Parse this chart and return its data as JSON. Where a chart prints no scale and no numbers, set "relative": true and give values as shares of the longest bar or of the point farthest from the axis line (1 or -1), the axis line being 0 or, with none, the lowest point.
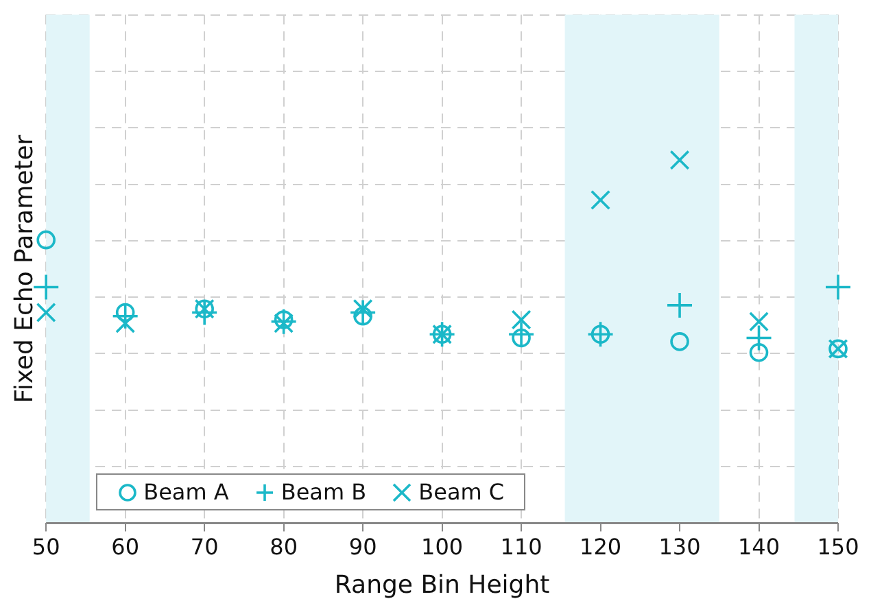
{
  "chart_data": {
    "type": "scatter",
    "relative": true,
    "xlabel": "Range Bin Height",
    "ylabel": "Fixed Echo Parameter",
    "x": [
      50,
      60,
      70,
      80,
      90,
      100,
      110,
      120,
      130,
      140,
      150
    ],
    "xlim": [
      50,
      150
    ],
    "xticks": [
      50,
      60,
      70,
      80,
      90,
      100,
      110,
      120,
      130,
      140,
      150
    ],
    "grid": true,
    "legend": "bottom",
    "bands": [
      {
        "axis": "x",
        "from": 50,
        "to": 55.5,
        "color": "#e2f5f9"
      },
      {
        "axis": "x",
        "from": 115.5,
        "to": 135,
        "color": "#e2f5f9"
      },
      {
        "axis": "x",
        "from": 144.5,
        "to": 150,
        "color": "#e2f5f9"
      }
    ],
    "series": [
      {
        "name": "Beam A",
        "color": "#1bb8c8",
        "marker": "circle",
        "values": [
          0.78,
          0.58,
          0.59,
          0.56,
          0.57,
          0.52,
          0.51,
          0.52,
          0.5,
          0.47,
          0.48
        ]
      },
      {
        "name": "Beam B",
        "color": "#1bb8c8",
        "marker": "plus",
        "values": [
          0.65,
          0.57,
          0.58,
          0.555,
          0.58,
          0.52,
          0.52,
          0.52,
          0.6,
          0.51,
          0.65
        ]
      },
      {
        "name": "Beam C",
        "color": "#1bb8c8",
        "marker": "cross",
        "values": [
          0.58,
          0.55,
          0.59,
          0.55,
          0.59,
          0.52,
          0.56,
          0.89,
          1,
          0.555,
          0.48
        ]
      }
    ]
  }
}
